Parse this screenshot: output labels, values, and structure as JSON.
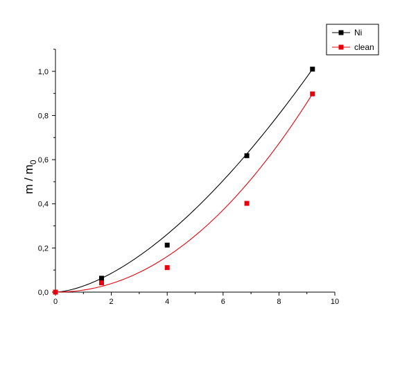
{
  "chart_data": {
    "type": "scatter",
    "title": "",
    "xlabel": "",
    "ylabel": "m / m",
    "ylabel_subscript": "0",
    "xlim": [
      0,
      10
    ],
    "ylim": [
      0,
      1.1
    ],
    "x_ticks": [
      0,
      2,
      4,
      6,
      8,
      10
    ],
    "x_tick_labels": [
      "0",
      "2",
      "4",
      "6",
      "8",
      "10"
    ],
    "y_ticks": [
      0,
      0.2,
      0.4,
      0.6,
      0.8,
      1.0
    ],
    "y_tick_labels": [
      "0,0",
      "0,2",
      "0,4",
      "0,6",
      "0,8",
      "1,0"
    ],
    "grid": false,
    "legend_position": "top-right",
    "series": [
      {
        "name": "Ni",
        "color": "#000000",
        "x": [
          0,
          1.65,
          4.0,
          6.85,
          9.2
        ],
        "y": [
          0.0,
          0.063,
          0.213,
          0.618,
          1.01
        ],
        "fit_exponent": 1.62
      },
      {
        "name": "clean",
        "color": "#e8000b",
        "x": [
          0,
          1.65,
          4.0,
          6.85,
          9.2
        ],
        "y": [
          0.0,
          0.042,
          0.111,
          0.402,
          0.898
        ],
        "fit_exponent": 2.06
      }
    ]
  }
}
